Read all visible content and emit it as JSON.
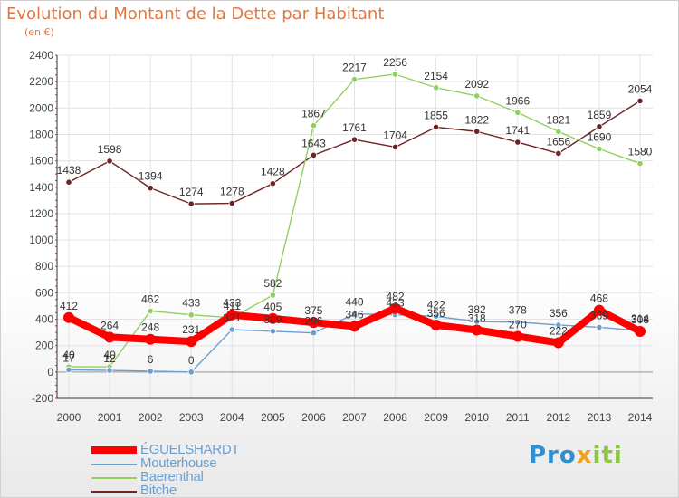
{
  "title": "Evolution du Montant de la Dette par Habitant",
  "subtitle": "(en €)",
  "logo": "Proxiti",
  "chart_data": {
    "type": "line",
    "x": [
      "2000",
      "2001",
      "2002",
      "2003",
      "2004",
      "2005",
      "2006",
      "2007",
      "2008",
      "2009",
      "2010",
      "2011",
      "2012",
      "2013",
      "2014"
    ],
    "ylim": [
      -200,
      2400
    ],
    "yticks": [
      -200,
      0,
      200,
      400,
      600,
      800,
      1000,
      1200,
      1400,
      1600,
      1800,
      2000,
      2200,
      2400
    ],
    "grid": true,
    "legend_placement": "bottom-left",
    "series": [
      {
        "name": "ÉGUELSHARDT",
        "color": "#ff0000",
        "values": [
          412,
          264,
          248,
          231,
          433,
          405,
          375,
          346,
          482,
          356,
          318,
          270,
          222,
          468,
          308
        ]
      },
      {
        "name": "Mouterhouse",
        "color": "#6b9fd0",
        "values": [
          17,
          12,
          6,
          0,
          321,
          309,
          296,
          440,
          433,
          422,
          382,
          378,
          356,
          339,
          314
        ]
      },
      {
        "name": "Baerenthal",
        "color": "#90d060",
        "values": [
          40,
          40,
          462,
          433,
          411,
          582,
          1867,
          2217,
          2256,
          2154,
          2092,
          1966,
          1821,
          1690,
          1580
        ]
      },
      {
        "name": "Bitche",
        "color": "#6e2323",
        "values": [
          1438,
          1598,
          1394,
          1274,
          1278,
          1428,
          1643,
          1761,
          1704,
          1855,
          1822,
          1741,
          1656,
          1859,
          2054
        ]
      }
    ]
  }
}
